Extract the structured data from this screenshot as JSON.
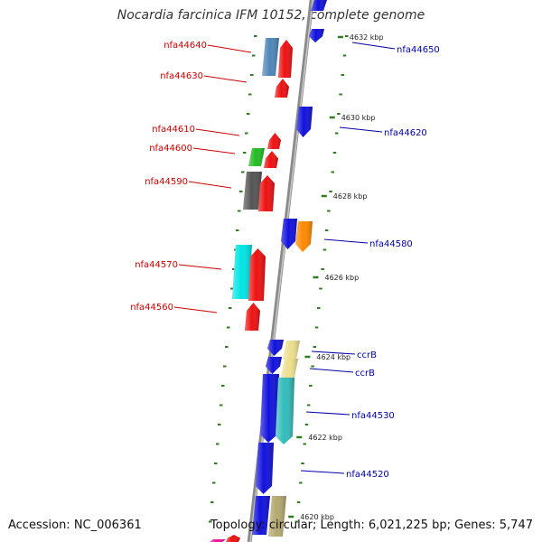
{
  "title": "Nocardia farcinica IFM 10152, complete genome",
  "footer": {
    "accession": "Accession: NC_006361",
    "summary": "Topology: circular; Length: 6,021,225 bp; Genes: 5,747"
  },
  "colors": {
    "backbone": "#8a8a8a",
    "tick": "#2f7d1f",
    "forward_label": "#cc0000",
    "reverse_label": "#0000aa"
  },
  "kbp_ticks": [
    "4632 kbp",
    "4630 kbp",
    "4628 kbp",
    "4626 kbp",
    "4624 kbp",
    "4622 kbp",
    "4620 kbp"
  ],
  "forward_labels": [
    "nfa44640",
    "nfa44630",
    "nfa44610",
    "nfa44600",
    "nfa44590",
    "nfa44570",
    "nfa44560"
  ],
  "reverse_labels": [
    "nfa44650",
    "nfa44620",
    "nfa44580",
    "ccrB",
    "ccrB",
    "nfa44530",
    "nfa44520"
  ],
  "gene_colors": {
    "red": "#ee1111",
    "blue": "#1111dd",
    "steel": "#4f86b8",
    "green": "#22bb22",
    "gray": "#555555",
    "cyan": "#00e5e5",
    "orange": "#ff8800",
    "khaki": "#ecdf90",
    "teal": "#33bbbb",
    "olive": "#b3a870"
  }
}
